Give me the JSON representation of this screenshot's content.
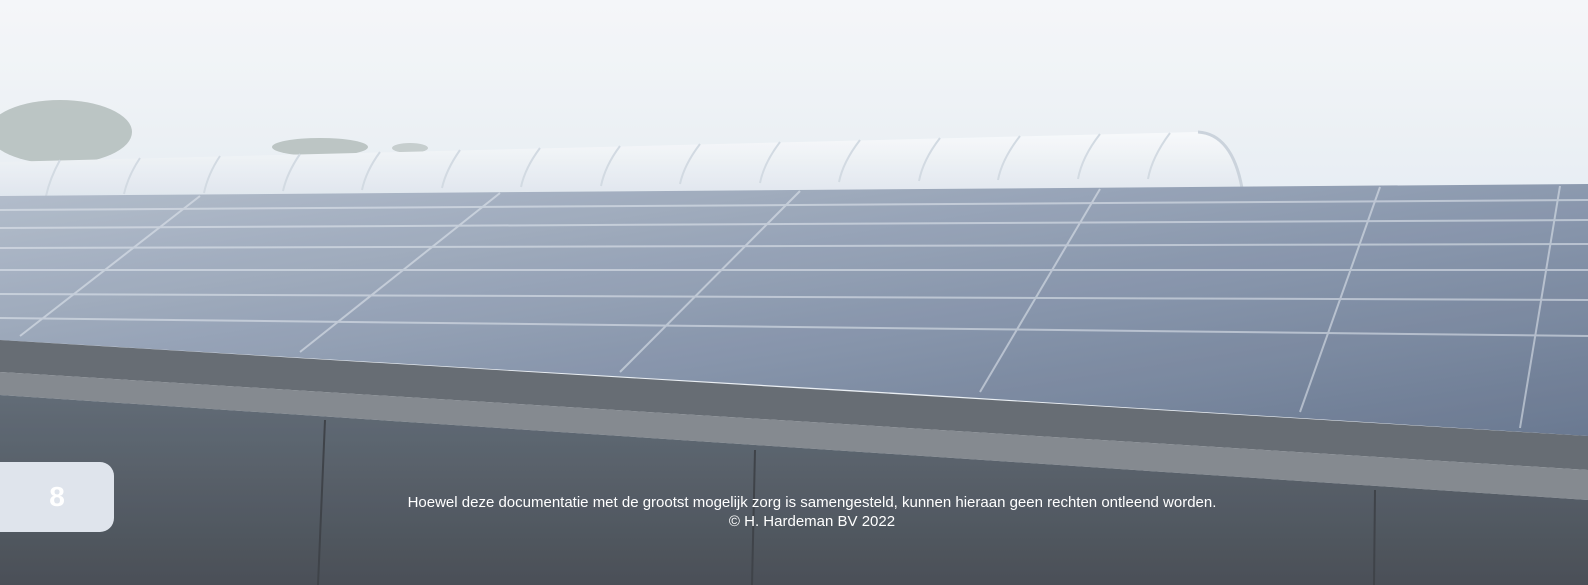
{
  "page": {
    "number": "8"
  },
  "footer": {
    "disclaimer": "Hoewel deze documentatie met de grootst mogelijk zorg is samengesteld, kunnen hieraan geen rechten ontleend worden.",
    "copyright": "© H. Hardeman BV 2022"
  },
  "photo": {
    "subject": "corrugated steel roof with translucent barrel-vault skylight",
    "sky_color": "#eef2f6",
    "roof_color": "#6f7f97",
    "wall_color": "#4a4f57"
  }
}
